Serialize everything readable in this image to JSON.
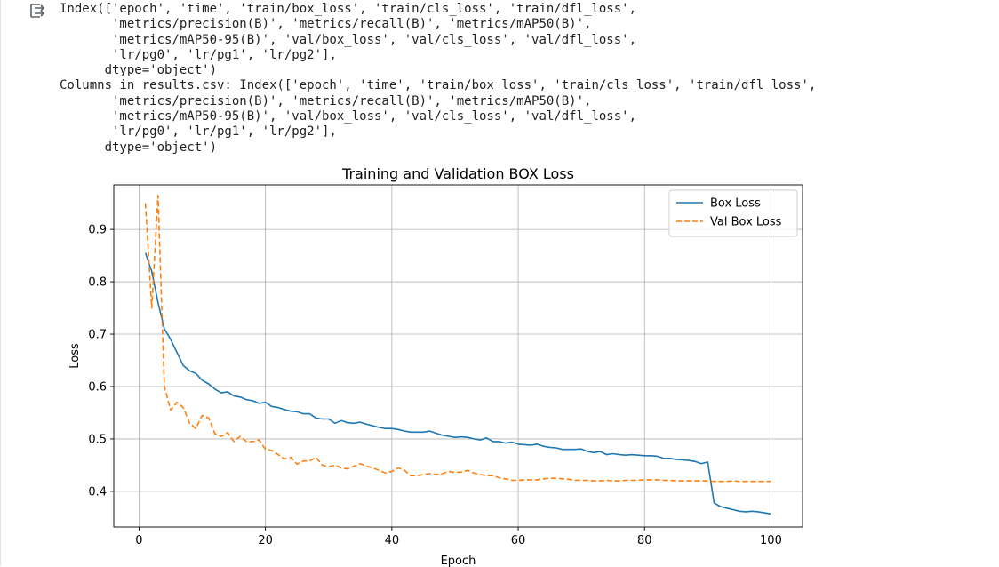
{
  "output": {
    "lines": [
      "Index(['epoch', 'time', 'train/box_loss', 'train/cls_loss', 'train/dfl_loss',",
      "       'metrics/precision(B)', 'metrics/recall(B)', 'metrics/mAP50(B)',",
      "       'metrics/mAP50-95(B)', 'val/box_loss', 'val/cls_loss', 'val/dfl_loss',",
      "       'lr/pg0', 'lr/pg1', 'lr/pg2'],",
      "      dtype='object')",
      "Columns in results.csv: Index(['epoch', 'time', 'train/box_loss', 'train/cls_loss', 'train/dfl_loss',",
      "       'metrics/precision(B)', 'metrics/recall(B)', 'metrics/mAP50(B)',",
      "       'metrics/mAP50-95(B)', 'val/box_loss', 'val/cls_loss', 'val/dfl_loss',",
      "       'lr/pg0', 'lr/pg1', 'lr/pg2'],",
      "      dtype='object')"
    ]
  },
  "icons": {
    "output_toggle": "output-toggle-icon"
  },
  "chart_data": {
    "type": "line",
    "title": "Training and Validation BOX Loss",
    "xlabel": "Epoch",
    "ylabel": "Loss",
    "xlim": [
      -4,
      105
    ],
    "ylim": [
      0.332,
      0.985
    ],
    "xticks": [
      0,
      20,
      40,
      60,
      80,
      100
    ],
    "yticks": [
      0.4,
      0.5,
      0.6,
      0.7,
      0.8,
      0.9
    ],
    "grid": true,
    "legend_position": "top-right",
    "x": [
      1,
      2,
      3,
      4,
      5,
      6,
      7,
      8,
      9,
      10,
      11,
      12,
      13,
      14,
      15,
      16,
      17,
      18,
      19,
      20,
      21,
      22,
      23,
      24,
      25,
      26,
      27,
      28,
      29,
      30,
      31,
      32,
      33,
      34,
      35,
      36,
      37,
      38,
      39,
      40,
      41,
      42,
      43,
      44,
      45,
      46,
      47,
      48,
      49,
      50,
      51,
      52,
      53,
      54,
      55,
      56,
      57,
      58,
      59,
      60,
      61,
      62,
      63,
      64,
      65,
      66,
      67,
      68,
      69,
      70,
      71,
      72,
      73,
      74,
      75,
      76,
      77,
      78,
      79,
      80,
      81,
      82,
      83,
      84,
      85,
      86,
      87,
      88,
      89,
      90,
      91,
      92,
      93,
      94,
      95,
      96,
      97,
      98,
      99,
      100
    ],
    "series": [
      {
        "name": "Box Loss",
        "color": "#1f77b4",
        "style": "solid",
        "values": [
          0.855,
          0.82,
          0.76,
          0.71,
          0.69,
          0.665,
          0.64,
          0.63,
          0.625,
          0.612,
          0.605,
          0.595,
          0.588,
          0.59,
          0.582,
          0.58,
          0.575,
          0.573,
          0.568,
          0.57,
          0.562,
          0.56,
          0.556,
          0.553,
          0.552,
          0.548,
          0.548,
          0.54,
          0.538,
          0.538,
          0.53,
          0.535,
          0.531,
          0.53,
          0.532,
          0.528,
          0.525,
          0.522,
          0.52,
          0.52,
          0.518,
          0.515,
          0.513,
          0.513,
          0.513,
          0.515,
          0.511,
          0.507,
          0.505,
          0.503,
          0.504,
          0.503,
          0.5,
          0.498,
          0.502,
          0.495,
          0.495,
          0.492,
          0.494,
          0.49,
          0.489,
          0.488,
          0.49,
          0.486,
          0.484,
          0.483,
          0.48,
          0.48,
          0.48,
          0.481,
          0.476,
          0.474,
          0.476,
          0.47,
          0.472,
          0.47,
          0.469,
          0.47,
          0.469,
          0.468,
          0.468,
          0.467,
          0.463,
          0.463,
          0.461,
          0.46,
          0.459,
          0.457,
          0.453,
          0.456,
          0.378,
          0.371,
          0.368,
          0.365,
          0.362,
          0.361,
          0.362,
          0.361,
          0.359,
          0.357
        ]
      },
      {
        "name": "Val Box Loss",
        "color": "#ff7f0e",
        "style": "dashed",
        "values": [
          0.95,
          0.75,
          0.965,
          0.6,
          0.555,
          0.57,
          0.56,
          0.53,
          0.52,
          0.545,
          0.54,
          0.51,
          0.505,
          0.512,
          0.495,
          0.505,
          0.495,
          0.495,
          0.498,
          0.48,
          0.478,
          0.47,
          0.462,
          0.465,
          0.452,
          0.458,
          0.458,
          0.465,
          0.45,
          0.447,
          0.45,
          0.445,
          0.443,
          0.448,
          0.453,
          0.448,
          0.445,
          0.44,
          0.435,
          0.438,
          0.445,
          0.44,
          0.43,
          0.43,
          0.432,
          0.434,
          0.432,
          0.434,
          0.438,
          0.436,
          0.437,
          0.44,
          0.435,
          0.432,
          0.43,
          0.43,
          0.426,
          0.424,
          0.421,
          0.421,
          0.422,
          0.422,
          0.422,
          0.424,
          0.425,
          0.425,
          0.424,
          0.423,
          0.421,
          0.421,
          0.421,
          0.42,
          0.42,
          0.421,
          0.42,
          0.42,
          0.421,
          0.421,
          0.421,
          0.422,
          0.422,
          0.422,
          0.421,
          0.421,
          0.42,
          0.42,
          0.42,
          0.42,
          0.42,
          0.42,
          0.419,
          0.419,
          0.419,
          0.42,
          0.419,
          0.419,
          0.419,
          0.419,
          0.419,
          0.419
        ]
      }
    ]
  }
}
